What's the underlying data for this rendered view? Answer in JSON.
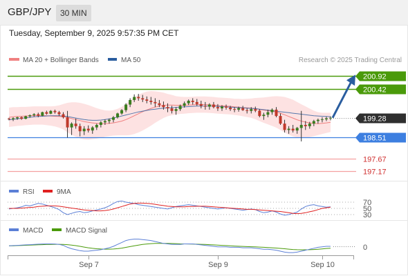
{
  "header": {
    "symbol": "GBP/JPY",
    "interval": "30 MIN",
    "datetime": "Tuesday, September 9, 2025 9:57:35 PM CET"
  },
  "chart_data": {
    "type": "candlestick",
    "legend": {
      "ma20": "MA 20 + Bollinger Bands",
      "ma50": "MA 50",
      "credit": "Research © 2025 Trading Central"
    },
    "colors": {
      "bull": "#3a7d1e",
      "bear": "#c0392b",
      "ma20": "#f08080",
      "ma50": "#2a5d9f",
      "bands": "#fde2e2",
      "resistance": "#4a9a0a",
      "pivot": "#3d7fe0",
      "support": "#f4a0a0",
      "last": "#2f2f2f",
      "arrow": "#2a5d9f"
    },
    "levels": [
      {
        "label": "200.92",
        "value": 200.92,
        "kind": "resistance"
      },
      {
        "label": "200.42",
        "value": 200.42,
        "kind": "resistance"
      },
      {
        "label": "199.28",
        "value": 199.28,
        "kind": "last"
      },
      {
        "label": "198.51",
        "value": 198.51,
        "kind": "pivot"
      },
      {
        "label": "197.67",
        "value": 197.67,
        "kind": "support"
      },
      {
        "label": "197.17",
        "value": 197.17,
        "kind": "support"
      }
    ],
    "price_range": [
      196.8,
      201.2
    ],
    "arrow": {
      "from": 199.28,
      "to": 200.92
    },
    "candles": [
      [
        199.25,
        199.28,
        199.18,
        199.22
      ],
      [
        199.22,
        199.3,
        199.15,
        199.26
      ],
      [
        199.26,
        199.32,
        199.2,
        199.3
      ],
      [
        199.3,
        199.33,
        199.2,
        199.24
      ],
      [
        199.24,
        199.36,
        199.22,
        199.34
      ],
      [
        199.34,
        199.41,
        199.28,
        199.38
      ],
      [
        199.38,
        199.46,
        199.32,
        199.42
      ],
      [
        199.42,
        199.48,
        199.3,
        199.36
      ],
      [
        199.36,
        199.52,
        199.34,
        199.5
      ],
      [
        199.5,
        199.56,
        199.4,
        199.44
      ],
      [
        199.44,
        199.58,
        199.42,
        199.55
      ],
      [
        199.55,
        199.6,
        199.44,
        199.5
      ],
      [
        199.5,
        199.55,
        199.35,
        199.42
      ],
      [
        199.42,
        199.5,
        199.25,
        199.3
      ],
      [
        199.3,
        199.55,
        198.5,
        198.9
      ],
      [
        198.9,
        199.1,
        198.6,
        199.05
      ],
      [
        199.05,
        199.25,
        198.85,
        198.95
      ],
      [
        198.95,
        199.05,
        198.55,
        198.75
      ],
      [
        198.75,
        198.95,
        198.6,
        198.85
      ],
      [
        198.85,
        198.98,
        198.7,
        198.78
      ],
      [
        198.78,
        198.95,
        198.65,
        198.9
      ],
      [
        198.9,
        199.05,
        198.8,
        199.0
      ],
      [
        199.0,
        199.15,
        198.9,
        199.1
      ],
      [
        199.1,
        199.22,
        199.0,
        199.15
      ],
      [
        199.15,
        199.25,
        199.05,
        199.2
      ],
      [
        199.2,
        199.35,
        199.1,
        199.3
      ],
      [
        199.3,
        199.48,
        199.25,
        199.45
      ],
      [
        199.45,
        199.62,
        199.4,
        199.58
      ],
      [
        199.58,
        199.85,
        199.5,
        199.8
      ],
      [
        199.8,
        200.05,
        199.7,
        199.98
      ],
      [
        199.98,
        200.2,
        199.9,
        200.1
      ],
      [
        200.1,
        200.22,
        199.95,
        200.05
      ],
      [
        200.05,
        200.18,
        199.9,
        200.0
      ],
      [
        200.0,
        200.12,
        199.85,
        199.95
      ],
      [
        199.95,
        200.1,
        199.8,
        199.9
      ],
      [
        199.9,
        200.05,
        199.7,
        199.85
      ],
      [
        199.85,
        199.98,
        199.7,
        199.78
      ],
      [
        199.78,
        199.92,
        199.6,
        199.7
      ],
      [
        199.7,
        199.85,
        199.5,
        199.65
      ],
      [
        199.65,
        199.75,
        199.45,
        199.55
      ],
      [
        199.55,
        199.7,
        199.4,
        199.62
      ],
      [
        199.62,
        199.8,
        199.55,
        199.75
      ],
      [
        199.75,
        199.92,
        199.68,
        199.85
      ],
      [
        199.85,
        200.0,
        199.78,
        199.95
      ],
      [
        199.95,
        200.05,
        199.8,
        199.9
      ],
      [
        199.9,
        200.02,
        199.75,
        199.82
      ],
      [
        199.82,
        199.95,
        199.65,
        199.75
      ],
      [
        199.75,
        199.9,
        199.6,
        199.72
      ],
      [
        199.72,
        199.85,
        199.6,
        199.8
      ],
      [
        199.8,
        199.9,
        199.65,
        199.7
      ],
      [
        199.7,
        199.82,
        199.55,
        199.65
      ],
      [
        199.65,
        199.78,
        199.55,
        199.72
      ],
      [
        199.72,
        199.8,
        199.6,
        199.68
      ],
      [
        199.68,
        199.75,
        199.55,
        199.62
      ],
      [
        199.62,
        199.7,
        199.5,
        199.6
      ],
      [
        199.6,
        199.72,
        199.52,
        199.66
      ],
      [
        199.66,
        199.75,
        199.55,
        199.58
      ],
      [
        199.58,
        199.65,
        199.45,
        199.55
      ],
      [
        199.55,
        199.7,
        199.45,
        199.62
      ],
      [
        199.62,
        199.72,
        199.5,
        199.56
      ],
      [
        199.56,
        199.62,
        199.3,
        199.35
      ],
      [
        199.35,
        199.48,
        199.2,
        199.4
      ],
      [
        199.4,
        199.6,
        199.3,
        199.5
      ],
      [
        199.5,
        199.65,
        199.4,
        199.6
      ],
      [
        199.6,
        199.7,
        199.3,
        199.35
      ],
      [
        199.35,
        199.45,
        199.0,
        199.05
      ],
      [
        199.05,
        199.2,
        198.7,
        198.8
      ],
      [
        198.8,
        198.95,
        198.65,
        198.85
      ],
      [
        198.85,
        199.0,
        198.7,
        198.78
      ],
      [
        198.78,
        198.92,
        198.65,
        198.88
      ],
      [
        198.88,
        199.55,
        198.35,
        199.0
      ],
      [
        199.0,
        199.15,
        198.8,
        198.95
      ],
      [
        198.95,
        199.12,
        198.85,
        199.05
      ],
      [
        199.05,
        199.2,
        198.95,
        199.15
      ],
      [
        199.15,
        199.25,
        199.05,
        199.2
      ],
      [
        199.2,
        199.3,
        199.1,
        199.22
      ],
      [
        199.22,
        199.32,
        199.15,
        199.26
      ],
      [
        199.26,
        199.34,
        199.18,
        199.28
      ]
    ],
    "ma20": [
      199.3,
      199.32,
      199.33,
      199.34,
      199.35,
      199.36,
      199.37,
      199.37,
      199.37,
      199.36,
      199.35,
      199.34,
      199.33,
      199.32,
      199.29,
      199.25,
      199.21,
      199.17,
      199.13,
      199.1,
      199.08,
      199.06,
      199.05,
      199.05,
      199.06,
      199.08,
      199.11,
      199.15,
      199.21,
      199.28,
      199.36,
      199.44,
      199.52,
      199.59,
      199.65,
      199.7,
      199.74,
      199.77,
      199.78,
      199.78,
      199.77,
      199.77,
      199.77,
      199.78,
      199.79,
      199.8,
      199.8,
      199.8,
      199.79,
      199.78,
      199.76,
      199.75,
      199.74,
      199.73,
      199.71,
      199.7,
      199.68,
      199.67,
      199.66,
      199.64,
      199.61,
      199.58,
      199.56,
      199.54,
      199.51,
      199.46,
      199.4,
      199.33,
      199.27,
      199.2,
      199.15,
      199.11,
      199.08,
      199.06,
      199.05,
      199.06,
      199.08,
      199.1
    ],
    "ma50": [
      199.2,
      199.22,
      199.24,
      199.26,
      199.28,
      199.3,
      199.32,
      199.33,
      199.34,
      199.35,
      199.36,
      199.36,
      199.36,
      199.35,
      199.33,
      199.3,
      199.27,
      199.24,
      199.21,
      199.19,
      199.18,
      199.18,
      199.19,
      199.21,
      199.24,
      199.27,
      199.31,
      199.35,
      199.39,
      199.43,
      199.47,
      199.51,
      199.54,
      199.57,
      199.6,
      199.62,
      199.64,
      199.66,
      199.67,
      199.68,
      199.69,
      199.7,
      199.71,
      199.72,
      199.73,
      199.74,
      199.74,
      199.74,
      199.74,
      199.74,
      199.73,
      199.72,
      199.71,
      199.7,
      199.69,
      199.68,
      199.67,
      199.66,
      199.65,
      199.64,
      199.62,
      199.6,
      199.58,
      199.56,
      199.54,
      199.52,
      199.5,
      199.48,
      199.46,
      199.44,
      199.42,
      199.4,
      199.38,
      199.36,
      199.35,
      199.34,
      199.33,
      199.32
    ],
    "band_width": [
      0.38,
      0.38,
      0.37,
      0.37,
      0.36,
      0.36,
      0.36,
      0.36,
      0.36,
      0.37,
      0.38,
      0.4,
      0.44,
      0.5,
      0.58,
      0.64,
      0.68,
      0.7,
      0.7,
      0.68,
      0.64,
      0.6,
      0.56,
      0.52,
      0.5,
      0.5,
      0.52,
      0.56,
      0.62,
      0.68,
      0.72,
      0.74,
      0.74,
      0.72,
      0.68,
      0.62,
      0.56,
      0.5,
      0.44,
      0.4,
      0.36,
      0.34,
      0.33,
      0.32,
      0.32,
      0.32,
      0.32,
      0.32,
      0.32,
      0.32,
      0.32,
      0.32,
      0.32,
      0.32,
      0.32,
      0.33,
      0.34,
      0.36,
      0.38,
      0.42,
      0.46,
      0.5,
      0.54,
      0.58,
      0.62,
      0.66,
      0.7,
      0.72,
      0.72,
      0.7,
      0.66,
      0.62,
      0.56,
      0.5,
      0.45,
      0.42,
      0.4,
      0.38
    ],
    "rsi_panel": {
      "legend": {
        "rsi": "RSI",
        "ma": "9MA"
      },
      "colors": {
        "rsi": "#5b7fd6",
        "ma": "#e02020"
      },
      "levels": [
        {
          "label": "70",
          "value": 70
        },
        {
          "label": "50",
          "value": 50
        },
        {
          "label": "30",
          "value": 30
        }
      ],
      "rsi": [
        48,
        50,
        52,
        55,
        60,
        58,
        62,
        66,
        64,
        60,
        56,
        52,
        46,
        36,
        30,
        34,
        38,
        40,
        36,
        38,
        42,
        45,
        48,
        52,
        58,
        66,
        72,
        74,
        70,
        68,
        66,
        62,
        60,
        58,
        56,
        54,
        52,
        50,
        48,
        52,
        56,
        58,
        60,
        62,
        60,
        58,
        56,
        54,
        52,
        50,
        48,
        50,
        52,
        50,
        48,
        46,
        44,
        46,
        48,
        46,
        40,
        36,
        38,
        42,
        38,
        32,
        28,
        30,
        34,
        38,
        48,
        56,
        60,
        62,
        58,
        56,
        54,
        55
      ],
      "ma": [
        50,
        50,
        50,
        51,
        52,
        53,
        54,
        56,
        57,
        58,
        58,
        58,
        57,
        55,
        53,
        51,
        49,
        47,
        45,
        44,
        43,
        42,
        42,
        43,
        45,
        48,
        52,
        56,
        60,
        64,
        66,
        67,
        67,
        66,
        65,
        63,
        61,
        59,
        57,
        56,
        55,
        55,
        55,
        56,
        56,
        57,
        57,
        57,
        56,
        55,
        54,
        53,
        52,
        51,
        50,
        49,
        48,
        47,
        47,
        46,
        45,
        44,
        43,
        42,
        41,
        40,
        38,
        36,
        34,
        33,
        34,
        36,
        39,
        42,
        46,
        50,
        52,
        54
      ]
    },
    "macd_panel": {
      "legend": {
        "macd": "MACD",
        "signal": "MACD Signal"
      },
      "colors": {
        "macd": "#5b7fd6",
        "signal": "#4a9a0a"
      },
      "zero_label": "0",
      "macd": [
        0.01,
        0.015,
        0.02,
        0.025,
        0.03,
        0.035,
        0.04,
        0.045,
        0.048,
        0.05,
        0.05,
        0.048,
        0.04,
        0.02,
        -0.02,
        -0.05,
        -0.07,
        -0.09,
        -0.1,
        -0.1,
        -0.09,
        -0.08,
        -0.07,
        -0.05,
        -0.03,
        0.0,
        0.04,
        0.08,
        0.12,
        0.14,
        0.15,
        0.15,
        0.14,
        0.13,
        0.12,
        0.1,
        0.08,
        0.06,
        0.05,
        0.04,
        0.04,
        0.04,
        0.05,
        0.05,
        0.05,
        0.04,
        0.03,
        0.02,
        0.01,
        0.0,
        -0.01,
        -0.01,
        -0.01,
        -0.02,
        -0.02,
        -0.02,
        -0.03,
        -0.03,
        -0.03,
        -0.04,
        -0.05,
        -0.06,
        -0.06,
        -0.07,
        -0.08,
        -0.1,
        -0.12,
        -0.13,
        -0.13,
        -0.12,
        -0.1,
        -0.08,
        -0.06,
        -0.04,
        -0.02,
        -0.01,
        0.0,
        0.0
      ],
      "signal": [
        0.01,
        0.012,
        0.015,
        0.018,
        0.021,
        0.025,
        0.028,
        0.032,
        0.035,
        0.038,
        0.04,
        0.042,
        0.042,
        0.04,
        0.034,
        0.025,
        0.014,
        0.0,
        -0.015,
        -0.03,
        -0.042,
        -0.05,
        -0.055,
        -0.058,
        -0.058,
        -0.055,
        -0.048,
        -0.037,
        -0.022,
        -0.006,
        0.01,
        0.025,
        0.038,
        0.048,
        0.055,
        0.06,
        0.062,
        0.062,
        0.06,
        0.058,
        0.055,
        0.052,
        0.05,
        0.048,
        0.046,
        0.044,
        0.042,
        0.038,
        0.034,
        0.03,
        0.025,
        0.02,
        0.015,
        0.01,
        0.006,
        0.002,
        -0.002,
        -0.005,
        -0.008,
        -0.012,
        -0.016,
        -0.02,
        -0.025,
        -0.03,
        -0.036,
        -0.043,
        -0.05,
        -0.058,
        -0.065,
        -0.07,
        -0.072,
        -0.072,
        -0.07,
        -0.066,
        -0.06,
        -0.053,
        -0.045,
        -0.038
      ]
    },
    "xaxis": {
      "labels": [
        {
          "label": "Sep 7",
          "index": 19
        },
        {
          "label": "Sep 9",
          "index": 50
        },
        {
          "label": "Sep 10",
          "index": 75
        }
      ]
    }
  }
}
